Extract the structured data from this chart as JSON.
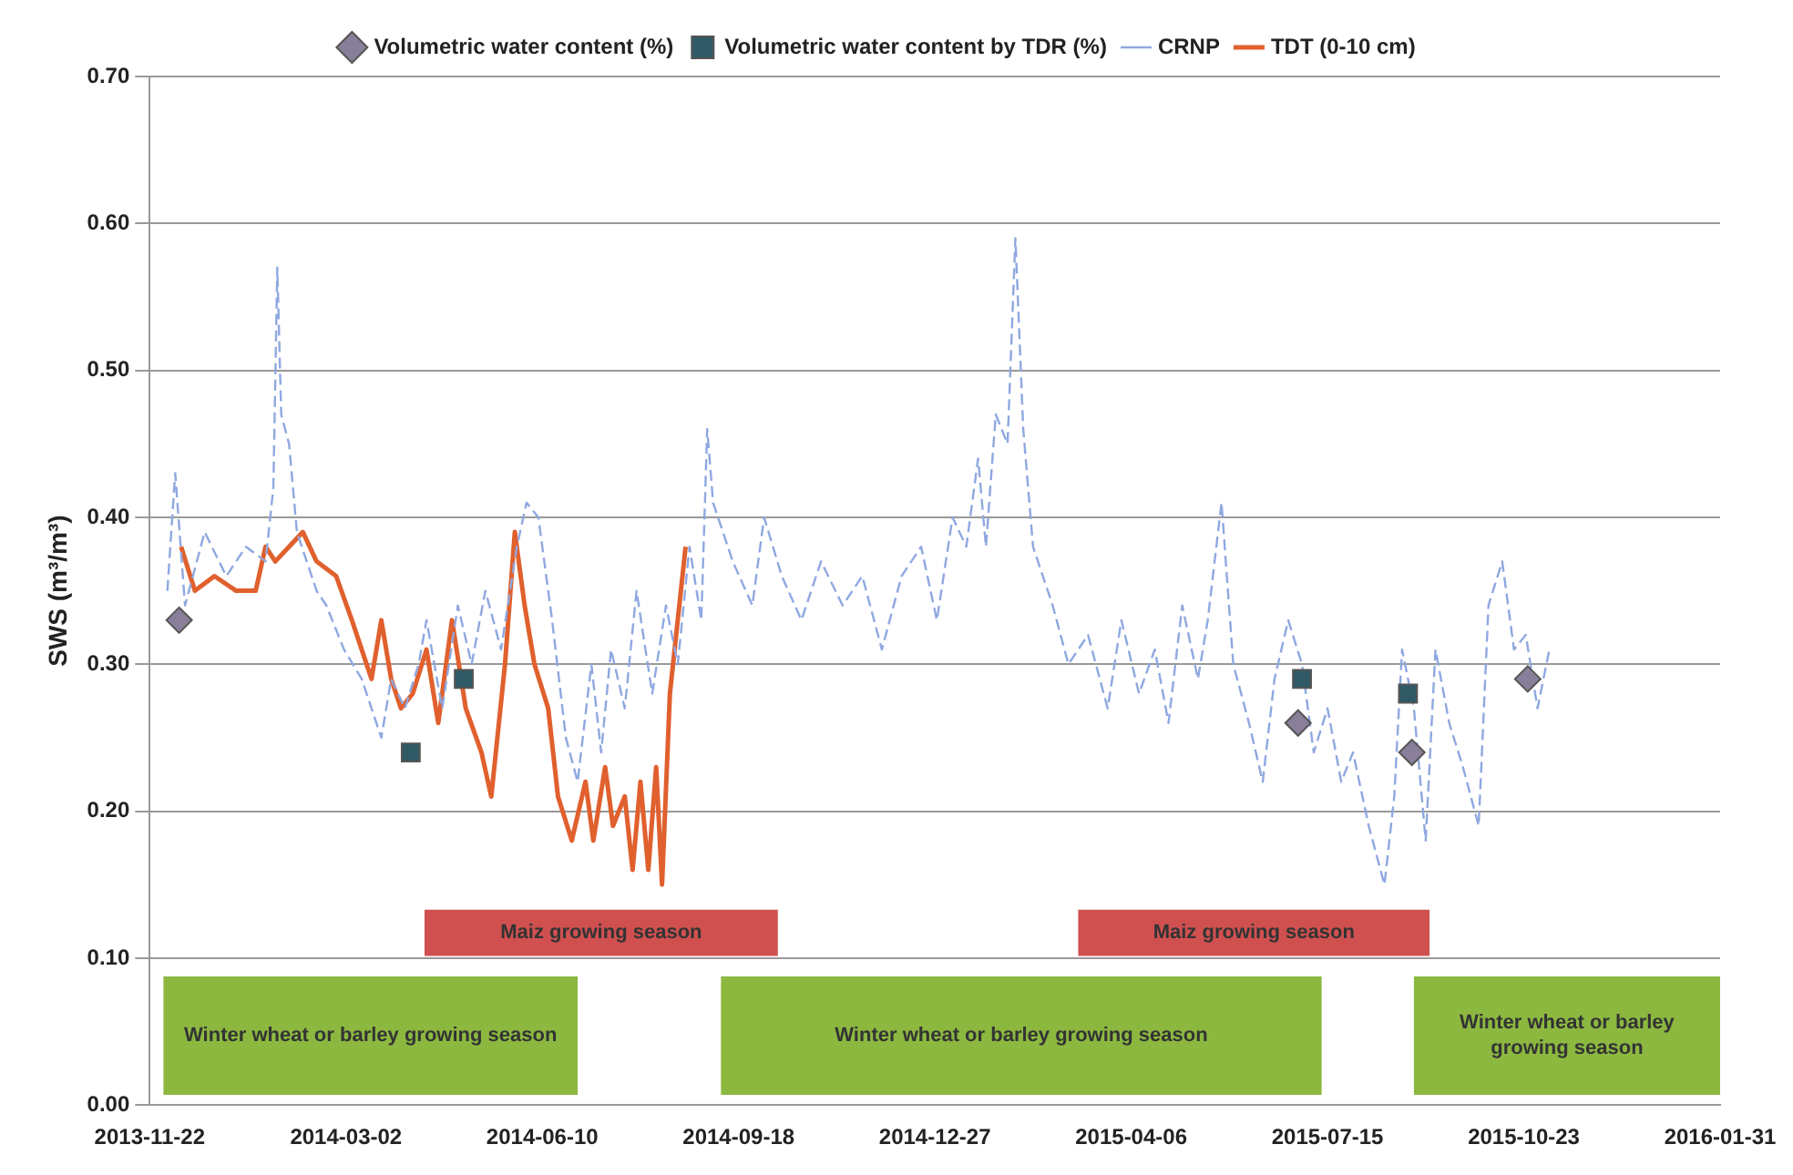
{
  "chart_data": {
    "type": "line",
    "ylabel": "SWS (m³/m³)",
    "xlim": [
      "2013-11-22",
      "2016-01-31"
    ],
    "xticks": [
      "2013-11-22",
      "2014-03-02",
      "2014-06-10",
      "2014-09-18",
      "2014-12-27",
      "2015-04-06",
      "2015-07-15",
      "2015-10-23",
      "2016-01-31"
    ],
    "ylim": [
      0,
      0.7
    ],
    "yticks": [
      {
        "value": 0,
        "label": "0.00"
      },
      {
        "value": 0.1,
        "label": "0.10"
      },
      {
        "value": 0.2,
        "label": "0.20"
      },
      {
        "value": 0.3,
        "label": "0.30"
      },
      {
        "value": 0.4,
        "label": "0.40"
      },
      {
        "value": 0.5,
        "label": "0.50"
      },
      {
        "value": 0.6,
        "label": "0.60"
      },
      {
        "value": 0.7,
        "label": "0.70"
      }
    ],
    "grid": "y",
    "legend": "top",
    "series": [
      {
        "name": "Volumetric water content (%)",
        "type": "scatter",
        "marker": "diamond",
        "color": "#8a7f9a",
        "x": [
          "2013-12-07",
          "2015-06-30",
          "2015-08-27",
          "2015-10-25"
        ],
        "values": [
          0.33,
          0.26,
          0.24,
          0.29
        ]
      },
      {
        "name": "Volumetric water content by TDR (%)",
        "type": "scatter",
        "marker": "square",
        "color": "#2f5a66",
        "x": [
          "2014-04-04",
          "2014-05-01",
          "2015-07-02",
          "2015-08-25"
        ],
        "values": [
          0.24,
          0.29,
          0.29,
          0.28
        ]
      },
      {
        "name": "CRNP",
        "line_style": "dashed",
        "color": "#8fa8e0",
        "x": [
          "2013-12-01",
          "2013-12-05",
          "2013-12-10",
          "2013-12-20",
          "2013-12-31",
          "2014-01-10",
          "2014-01-20",
          "2014-01-24",
          "2014-01-26",
          "2014-01-28",
          "2014-02-01",
          "2014-02-05",
          "2014-02-10",
          "2014-02-15",
          "2014-02-20",
          "2014-03-01",
          "2014-03-10",
          "2014-03-15",
          "2014-03-20",
          "2014-03-25",
          "2014-04-01",
          "2014-04-08",
          "2014-04-12",
          "2014-04-20",
          "2014-04-28",
          "2014-05-05",
          "2014-05-12",
          "2014-05-20",
          "2014-05-28",
          "2014-06-02",
          "2014-06-08",
          "2014-06-15",
          "2014-06-22",
          "2014-06-28",
          "2014-07-05",
          "2014-07-10",
          "2014-07-15",
          "2014-07-22",
          "2014-07-28",
          "2014-08-05",
          "2014-08-12",
          "2014-08-18",
          "2014-08-24",
          "2014-08-30",
          "2014-09-02",
          "2014-09-05",
          "2014-09-15",
          "2014-09-25",
          "2014-10-01",
          "2014-10-10",
          "2014-10-20",
          "2014-10-30",
          "2014-11-10",
          "2014-11-20",
          "2014-11-30",
          "2014-12-10",
          "2014-12-20",
          "2014-12-28",
          "2015-01-05",
          "2015-01-12",
          "2015-01-18",
          "2015-01-22",
          "2015-01-27",
          "2015-02-02",
          "2015-02-06",
          "2015-02-10",
          "2015-02-15",
          "2015-02-25",
          "2015-03-05",
          "2015-03-15",
          "2015-03-25",
          "2015-04-01",
          "2015-04-10",
          "2015-04-18",
          "2015-04-25",
          "2015-05-02",
          "2015-05-10",
          "2015-05-15",
          "2015-05-22",
          "2015-05-28",
          "2015-06-05",
          "2015-06-12",
          "2015-06-18",
          "2015-06-25",
          "2015-07-02",
          "2015-07-08",
          "2015-07-15",
          "2015-07-22",
          "2015-07-28",
          "2015-08-05",
          "2015-08-13",
          "2015-08-18",
          "2015-08-22",
          "2015-08-28",
          "2015-09-03",
          "2015-09-08",
          "2015-09-15",
          "2015-09-22",
          "2015-09-30",
          "2015-10-05",
          "2015-10-12",
          "2015-10-18",
          "2015-10-24",
          "2015-10-30",
          "2015-11-05"
        ],
        "values": [
          0.35,
          0.43,
          0.34,
          0.39,
          0.36,
          0.38,
          0.37,
          0.42,
          0.57,
          0.47,
          0.45,
          0.39,
          0.37,
          0.35,
          0.34,
          0.31,
          0.29,
          0.27,
          0.25,
          0.29,
          0.27,
          0.3,
          0.33,
          0.27,
          0.34,
          0.3,
          0.35,
          0.31,
          0.38,
          0.41,
          0.4,
          0.33,
          0.25,
          0.22,
          0.3,
          0.24,
          0.31,
          0.27,
          0.35,
          0.28,
          0.34,
          0.3,
          0.38,
          0.33,
          0.46,
          0.41,
          0.37,
          0.34,
          0.4,
          0.36,
          0.33,
          0.37,
          0.34,
          0.36,
          0.31,
          0.36,
          0.38,
          0.33,
          0.4,
          0.38,
          0.44,
          0.38,
          0.47,
          0.45,
          0.59,
          0.46,
          0.38,
          0.34,
          0.3,
          0.32,
          0.27,
          0.33,
          0.28,
          0.31,
          0.26,
          0.34,
          0.29,
          0.33,
          0.41,
          0.3,
          0.26,
          0.22,
          0.29,
          0.33,
          0.3,
          0.24,
          0.27,
          0.22,
          0.24,
          0.19,
          0.15,
          0.21,
          0.31,
          0.27,
          0.18,
          0.31,
          0.26,
          0.23,
          0.19,
          0.34,
          0.37,
          0.31,
          0.32,
          0.27,
          0.31
        ]
      },
      {
        "name": "TDT (0-10 cm)",
        "color": "#e0602e",
        "x": [
          "2013-12-08",
          "2013-12-15",
          "2013-12-25",
          "2014-01-05",
          "2014-01-15",
          "2014-01-20",
          "2014-01-25",
          "2014-02-01",
          "2014-02-08",
          "2014-02-15",
          "2014-02-25",
          "2014-03-05",
          "2014-03-15",
          "2014-03-20",
          "2014-03-25",
          "2014-03-30",
          "2014-04-05",
          "2014-04-12",
          "2014-04-18",
          "2014-04-25",
          "2014-05-02",
          "2014-05-10",
          "2014-05-15",
          "2014-05-22",
          "2014-05-27",
          "2014-06-01",
          "2014-06-06",
          "2014-06-13",
          "2014-06-18",
          "2014-06-25",
          "2014-07-02",
          "2014-07-06",
          "2014-07-12",
          "2014-07-16",
          "2014-07-22",
          "2014-07-26",
          "2014-07-30",
          "2014-08-03",
          "2014-08-07",
          "2014-08-10",
          "2014-08-14",
          "2014-08-18",
          "2014-08-22"
        ],
        "values": [
          0.38,
          0.35,
          0.36,
          0.35,
          0.35,
          0.38,
          0.37,
          0.38,
          0.39,
          0.37,
          0.36,
          0.33,
          0.29,
          0.33,
          0.29,
          0.27,
          0.28,
          0.31,
          0.26,
          0.33,
          0.27,
          0.24,
          0.21,
          0.3,
          0.39,
          0.34,
          0.3,
          0.27,
          0.21,
          0.18,
          0.22,
          0.18,
          0.23,
          0.19,
          0.21,
          0.16,
          0.22,
          0.16,
          0.23,
          0.15,
          0.28,
          0.33,
          0.38
        ]
      }
    ],
    "bands": [
      {
        "axis": "x",
        "from": "2013-11-29",
        "to": "2014-06-28",
        "label": "Winter wheat or barley growing season",
        "color": "#8cb840"
      },
      {
        "axis": "x",
        "from": "2014-04-11",
        "to": "2014-10-08",
        "label": "Maiz growing season",
        "color": "#d05050"
      },
      {
        "axis": "x",
        "from": "2014-09-09",
        "to": "2015-07-12",
        "label": "Winter wheat or barley growing season",
        "color": "#8cb840"
      },
      {
        "axis": "x",
        "from": "2015-03-10",
        "to": "2015-09-05",
        "label": "Maiz growing season",
        "color": "#d05050"
      },
      {
        "axis": "x",
        "from": "2015-08-28",
        "to": "2016-01-31",
        "label": "Winter wheat or barley growing season",
        "color": "#8cb840"
      }
    ]
  }
}
